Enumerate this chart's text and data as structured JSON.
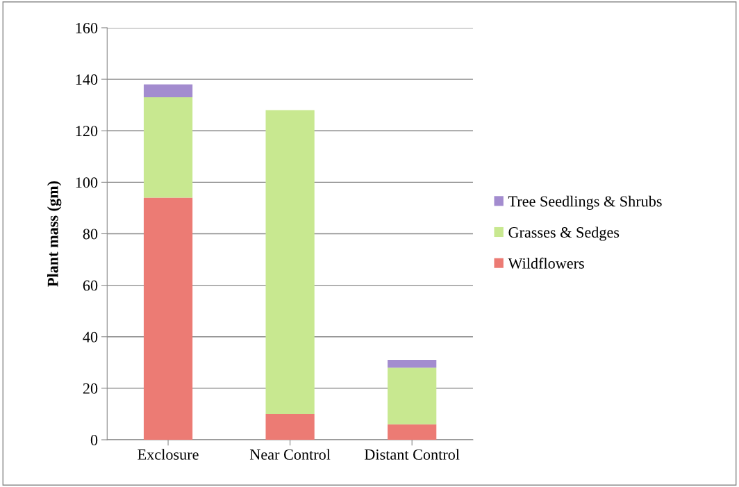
{
  "chart_data": {
    "type": "bar",
    "stacked": true,
    "ylabel": "Plant mass (gm)",
    "categories": [
      "Exclosure",
      "Near Control",
      "Distant Control"
    ],
    "series": [
      {
        "name": "Wildflowers",
        "color": "#ec7b74",
        "values": [
          94,
          10,
          6
        ]
      },
      {
        "name": "Grasses & Sedges",
        "color": "#c8e890",
        "values": [
          39,
          118,
          22
        ]
      },
      {
        "name": "Tree Seedlings & Shrubs",
        "color": "#a38ccf",
        "values": [
          5,
          0,
          3
        ]
      }
    ],
    "ylim": [
      0,
      160
    ],
    "yticks": [
      0,
      20,
      40,
      60,
      80,
      100,
      120,
      140,
      160
    ],
    "grid": "y",
    "legend": "right"
  }
}
